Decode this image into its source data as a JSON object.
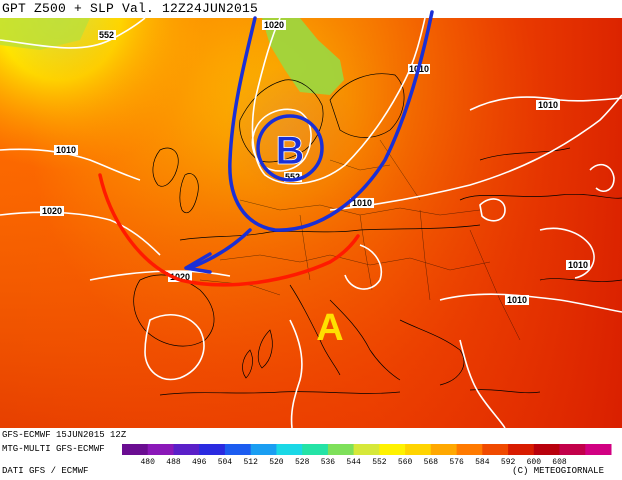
{
  "header": {
    "title": "GPT Z500 + SLP Val. 12Z24JUN2015"
  },
  "footer": {
    "run": "GFS-ECMWF 15JUN2015 12Z",
    "source": "MTG-MULTI GFS-ECMWF",
    "data": "DATI GFS / ECMWF",
    "copyright": "(C) METEOGIORNALE"
  },
  "annotations": {
    "low_letter": "B",
    "high_letter": "A",
    "low_color": "#1a2fd6",
    "high_color": "#ffe000",
    "arrow_color": "#1a2fd6",
    "front_color": "#ff1a00"
  },
  "isobar_labels": {
    "slp_1010": "1010",
    "slp_1020": "1020",
    "z_552": "552"
  },
  "legend": {
    "ticks": [
      "480",
      "488",
      "496",
      "504",
      "512",
      "520",
      "528",
      "536",
      "544",
      "552",
      "560",
      "568",
      "576",
      "584",
      "592",
      "600",
      "608"
    ],
    "colors": [
      "#6a0d91",
      "#8a18b8",
      "#5a1fc8",
      "#2a2ae0",
      "#1c5cf0",
      "#1a9ef2",
      "#1ad8e6",
      "#24e3a6",
      "#7ee05a",
      "#d6e83a",
      "#fff200",
      "#ffd400",
      "#ffa800",
      "#ff7a00",
      "#f04a00",
      "#d81c00",
      "#b8000c",
      "#c2004a",
      "#d10082"
    ]
  }
}
